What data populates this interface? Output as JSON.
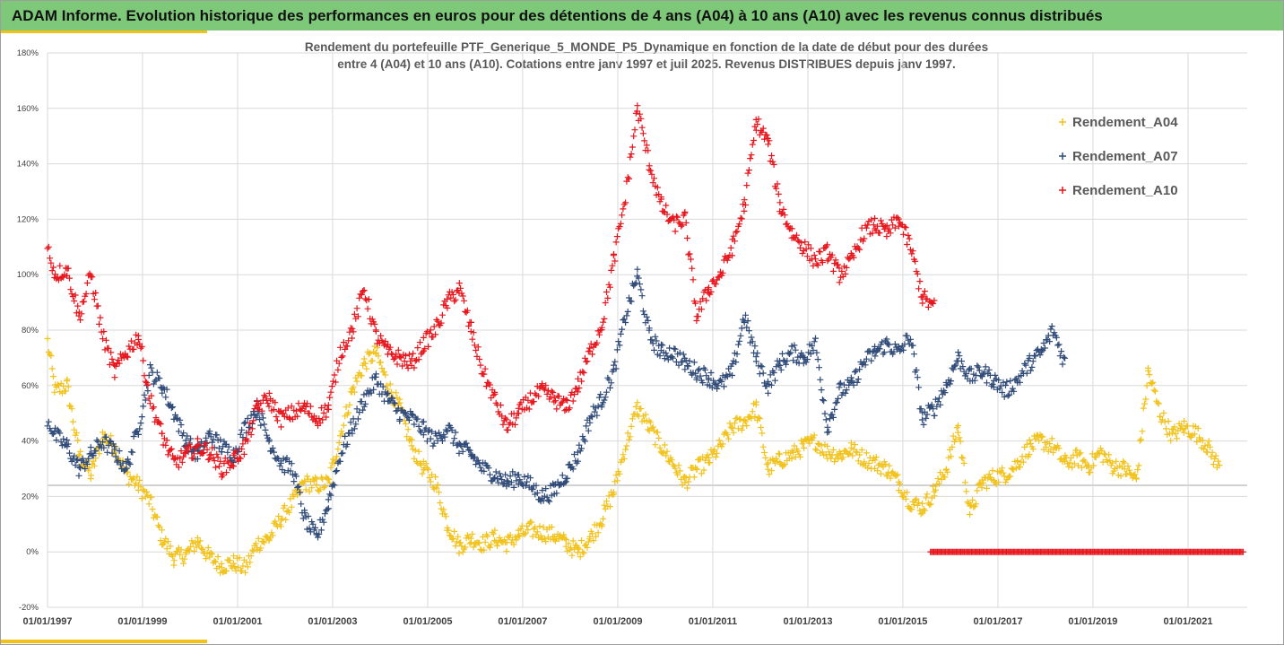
{
  "header": {
    "title": "ADAM Informe. Evolution historique des performances en euros pour des détentions de 4 ans (A04) à 10 ans (A10) avec les revenus connus distribués"
  },
  "colors": {
    "header_bg": "#7ec87a",
    "accent": "#f2c21b",
    "A04": "#f2c21b",
    "A07": "#2f4a78",
    "A10": "#e8141c"
  },
  "chart_data": {
    "type": "scatter",
    "marker": "plus",
    "title_lines": [
      "Rendement du portefeuille PTF_Generique_5_MONDE_P5_Dynamique  en fonction de la date de début pour des durées",
      "entre 4 (A04) et 10 ans (A10). Cotations entre janv 1997 et juil 2025. Revenus DISTRIBUES depuis janv 1997."
    ],
    "xlabel": "",
    "ylabel": "",
    "x_ticks": [
      "01/01/1997",
      "01/01/1999",
      "01/01/2001",
      "01/01/2003",
      "01/01/2005",
      "01/01/2007",
      "01/01/2009",
      "01/01/2011",
      "01/01/2013",
      "01/01/2015",
      "01/01/2017",
      "01/01/2019",
      "01/01/2021"
    ],
    "x_range": [
      "1997-01-01",
      "2022-04-01"
    ],
    "y_ticks": [
      "-20%",
      "0%",
      "20%",
      "40%",
      "60%",
      "80%",
      "100%",
      "120%",
      "140%",
      "160%",
      "180%"
    ],
    "ylim": [
      -20,
      180
    ],
    "grid": true,
    "legend_position": "right",
    "series": [
      {
        "name": "Rendement_A04",
        "color": "#f2c21b",
        "points": [
          [
            "1997-01",
            76
          ],
          [
            "1997-03",
            58
          ],
          [
            "1997-06",
            60
          ],
          [
            "1997-09",
            35
          ],
          [
            "1997-12",
            28
          ],
          [
            "1998-03",
            42
          ],
          [
            "1998-06",
            38
          ],
          [
            "1998-09",
            28
          ],
          [
            "1998-12",
            24
          ],
          [
            "1999-03",
            18
          ],
          [
            "1999-06",
            5
          ],
          [
            "1999-09",
            -2
          ],
          [
            "1999-12",
            -1
          ],
          [
            "2000-03",
            4
          ],
          [
            "2000-06",
            -2
          ],
          [
            "2000-09",
            -5
          ],
          [
            "2000-12",
            -4
          ],
          [
            "2001-03",
            -6
          ],
          [
            "2001-06",
            3
          ],
          [
            "2001-09",
            5
          ],
          [
            "2001-12",
            12
          ],
          [
            "2002-03",
            18
          ],
          [
            "2002-06",
            25
          ],
          [
            "2002-09",
            24
          ],
          [
            "2002-12",
            25
          ],
          [
            "2003-03",
            42
          ],
          [
            "2003-06",
            58
          ],
          [
            "2003-09",
            68
          ],
          [
            "2003-12",
            72
          ],
          [
            "2004-03",
            60
          ],
          [
            "2004-06",
            52
          ],
          [
            "2004-09",
            38
          ],
          [
            "2004-12",
            30
          ],
          [
            "2005-03",
            25
          ],
          [
            "2005-06",
            10
          ],
          [
            "2005-09",
            2
          ],
          [
            "2005-12",
            5
          ],
          [
            "2006-03",
            3
          ],
          [
            "2006-06",
            5
          ],
          [
            "2006-09",
            3
          ],
          [
            "2006-12",
            6
          ],
          [
            "2007-03",
            8
          ],
          [
            "2007-06",
            7
          ],
          [
            "2007-09",
            6
          ],
          [
            "2007-12",
            3
          ],
          [
            "2008-03",
            0
          ],
          [
            "2008-06",
            5
          ],
          [
            "2008-09",
            12
          ],
          [
            "2008-12",
            22
          ],
          [
            "2009-03",
            38
          ],
          [
            "2009-06",
            52
          ],
          [
            "2009-09",
            45
          ],
          [
            "2009-12",
            38
          ],
          [
            "2010-03",
            32
          ],
          [
            "2010-06",
            25
          ],
          [
            "2010-09",
            30
          ],
          [
            "2010-12",
            33
          ],
          [
            "2011-03",
            38
          ],
          [
            "2011-06",
            45
          ],
          [
            "2011-09",
            47
          ],
          [
            "2011-12",
            52
          ],
          [
            "2012-03",
            30
          ],
          [
            "2012-06",
            33
          ],
          [
            "2012-09",
            35
          ],
          [
            "2012-12",
            38
          ],
          [
            "2013-03",
            40
          ],
          [
            "2013-06",
            36
          ],
          [
            "2013-09",
            35
          ],
          [
            "2013-12",
            37
          ],
          [
            "2014-03",
            34
          ],
          [
            "2014-06",
            32
          ],
          [
            "2014-09",
            30
          ],
          [
            "2014-12",
            25
          ],
          [
            "2015-03",
            18
          ],
          [
            "2015-06",
            16
          ],
          [
            "2015-09",
            22
          ],
          [
            "2015-12",
            30
          ],
          [
            "2016-03",
            45
          ],
          [
            "2016-06",
            14
          ],
          [
            "2016-09",
            25
          ],
          [
            "2016-12",
            27
          ],
          [
            "2017-03",
            28
          ],
          [
            "2017-06",
            32
          ],
          [
            "2017-09",
            38
          ],
          [
            "2017-12",
            40
          ],
          [
            "2018-03",
            38
          ],
          [
            "2018-06",
            32
          ],
          [
            "2018-09",
            34
          ],
          [
            "2018-12",
            31
          ],
          [
            "2019-03",
            36
          ],
          [
            "2019-06",
            31
          ],
          [
            "2019-09",
            30
          ],
          [
            "2019-12",
            26
          ],
          [
            "2020-03",
            65
          ],
          [
            "2020-06",
            50
          ],
          [
            "2020-09",
            42
          ],
          [
            "2020-12",
            45
          ],
          [
            "2021-03",
            43
          ],
          [
            "2021-06",
            38
          ],
          [
            "2021-09",
            30
          ]
        ]
      },
      {
        "name": "Rendement_A07",
        "color": "#2f4a78",
        "points": [
          [
            "1997-01",
            48
          ],
          [
            "1997-03",
            42
          ],
          [
            "1997-06",
            38
          ],
          [
            "1997-09",
            30
          ],
          [
            "1997-12",
            35
          ],
          [
            "1998-03",
            40
          ],
          [
            "1998-06",
            36
          ],
          [
            "1998-09",
            30
          ],
          [
            "1998-12",
            45
          ],
          [
            "1999-03",
            65
          ],
          [
            "1999-06",
            60
          ],
          [
            "1999-09",
            50
          ],
          [
            "1999-12",
            40
          ],
          [
            "2000-03",
            35
          ],
          [
            "2000-06",
            42
          ],
          [
            "2000-09",
            38
          ],
          [
            "2000-12",
            35
          ],
          [
            "2001-03",
            45
          ],
          [
            "2001-06",
            52
          ],
          [
            "2001-09",
            40
          ],
          [
            "2001-12",
            32
          ],
          [
            "2002-03",
            30
          ],
          [
            "2002-06",
            12
          ],
          [
            "2002-09",
            5
          ],
          [
            "2002-12",
            18
          ],
          [
            "2003-03",
            35
          ],
          [
            "2003-06",
            45
          ],
          [
            "2003-09",
            55
          ],
          [
            "2003-12",
            62
          ],
          [
            "2004-03",
            55
          ],
          [
            "2004-06",
            50
          ],
          [
            "2004-09",
            48
          ],
          [
            "2004-12",
            44
          ],
          [
            "2005-03",
            40
          ],
          [
            "2005-06",
            45
          ],
          [
            "2005-09",
            38
          ],
          [
            "2005-12",
            35
          ],
          [
            "2006-03",
            30
          ],
          [
            "2006-06",
            28
          ],
          [
            "2006-09",
            25
          ],
          [
            "2006-12",
            27
          ],
          [
            "2007-03",
            24
          ],
          [
            "2007-06",
            20
          ],
          [
            "2007-09",
            22
          ],
          [
            "2007-12",
            28
          ],
          [
            "2008-03",
            35
          ],
          [
            "2008-06",
            48
          ],
          [
            "2008-09",
            55
          ],
          [
            "2008-12",
            65
          ],
          [
            "2009-03",
            85
          ],
          [
            "2009-06",
            100
          ],
          [
            "2009-09",
            78
          ],
          [
            "2009-12",
            72
          ],
          [
            "2010-03",
            72
          ],
          [
            "2010-06",
            68
          ],
          [
            "2010-09",
            65
          ],
          [
            "2010-12",
            63
          ],
          [
            "2011-03",
            60
          ],
          [
            "2011-06",
            65
          ],
          [
            "2011-09",
            85
          ],
          [
            "2011-12",
            70
          ],
          [
            "2012-03",
            60
          ],
          [
            "2012-06",
            68
          ],
          [
            "2012-09",
            72
          ],
          [
            "2012-12",
            70
          ],
          [
            "2013-03",
            75
          ],
          [
            "2013-06",
            45
          ],
          [
            "2013-09",
            58
          ],
          [
            "2013-12",
            60
          ],
          [
            "2014-03",
            68
          ],
          [
            "2014-06",
            72
          ],
          [
            "2014-09",
            75
          ],
          [
            "2014-12",
            72
          ],
          [
            "2015-03",
            78
          ],
          [
            "2015-06",
            48
          ],
          [
            "2015-09",
            52
          ],
          [
            "2015-12",
            60
          ],
          [
            "2016-03",
            70
          ],
          [
            "2016-06",
            63
          ],
          [
            "2016-09",
            65
          ],
          [
            "2016-12",
            62
          ],
          [
            "2017-03",
            58
          ],
          [
            "2017-06",
            62
          ],
          [
            "2017-09",
            68
          ],
          [
            "2017-12",
            72
          ],
          [
            "2018-03",
            80
          ],
          [
            "2018-06",
            68
          ]
        ]
      },
      {
        "name": "Rendement_A10",
        "color": "#e8141c",
        "points": [
          [
            "1997-01",
            110
          ],
          [
            "1997-03",
            100
          ],
          [
            "1997-06",
            102
          ],
          [
            "1997-09",
            85
          ],
          [
            "1997-12",
            100
          ],
          [
            "1998-03",
            78
          ],
          [
            "1998-06",
            65
          ],
          [
            "1998-09",
            72
          ],
          [
            "1998-12",
            78
          ],
          [
            "1999-03",
            55
          ],
          [
            "1999-06",
            42
          ],
          [
            "1999-09",
            32
          ],
          [
            "1999-12",
            35
          ],
          [
            "2000-03",
            38
          ],
          [
            "2000-06",
            36
          ],
          [
            "2000-09",
            30
          ],
          [
            "2000-12",
            33
          ],
          [
            "2001-03",
            38
          ],
          [
            "2001-06",
            52
          ],
          [
            "2001-09",
            55
          ],
          [
            "2001-12",
            48
          ],
          [
            "2002-03",
            50
          ],
          [
            "2002-06",
            52
          ],
          [
            "2002-09",
            48
          ],
          [
            "2002-12",
            52
          ],
          [
            "2003-03",
            72
          ],
          [
            "2003-06",
            80
          ],
          [
            "2003-09",
            95
          ],
          [
            "2003-12",
            78
          ],
          [
            "2004-03",
            72
          ],
          [
            "2004-06",
            70
          ],
          [
            "2004-09",
            68
          ],
          [
            "2004-12",
            75
          ],
          [
            "2005-03",
            80
          ],
          [
            "2005-06",
            90
          ],
          [
            "2005-09",
            95
          ],
          [
            "2005-12",
            80
          ],
          [
            "2006-03",
            65
          ],
          [
            "2006-06",
            55
          ],
          [
            "2006-09",
            45
          ],
          [
            "2006-12",
            50
          ],
          [
            "2007-03",
            55
          ],
          [
            "2007-06",
            58
          ],
          [
            "2007-09",
            55
          ],
          [
            "2007-12",
            52
          ],
          [
            "2008-03",
            60
          ],
          [
            "2008-06",
            72
          ],
          [
            "2008-09",
            82
          ],
          [
            "2008-12",
            105
          ],
          [
            "2009-03",
            128
          ],
          [
            "2009-06",
            160
          ],
          [
            "2009-09",
            140
          ],
          [
            "2009-12",
            125
          ],
          [
            "2010-03",
            118
          ],
          [
            "2010-06",
            120
          ],
          [
            "2010-09",
            85
          ],
          [
            "2010-12",
            95
          ],
          [
            "2011-03",
            100
          ],
          [
            "2011-06",
            110
          ],
          [
            "2011-09",
            125
          ],
          [
            "2011-12",
            155
          ],
          [
            "2012-03",
            148
          ],
          [
            "2012-06",
            125
          ],
          [
            "2012-09",
            115
          ],
          [
            "2012-12",
            110
          ],
          [
            "2013-03",
            105
          ],
          [
            "2013-06",
            108
          ],
          [
            "2013-09",
            100
          ],
          [
            "2013-12",
            105
          ],
          [
            "2014-03",
            115
          ],
          [
            "2014-06",
            118
          ],
          [
            "2014-09",
            115
          ],
          [
            "2014-12",
            120
          ],
          [
            "2015-03",
            110
          ],
          [
            "2015-06",
            92
          ],
          [
            "2015-09",
            88
          ]
        ]
      },
      {
        "name": "",
        "color": "#e8141c",
        "points": [
          [
            "2015-08",
            0
          ],
          [
            "2022-03",
            0
          ]
        ]
      }
    ]
  }
}
